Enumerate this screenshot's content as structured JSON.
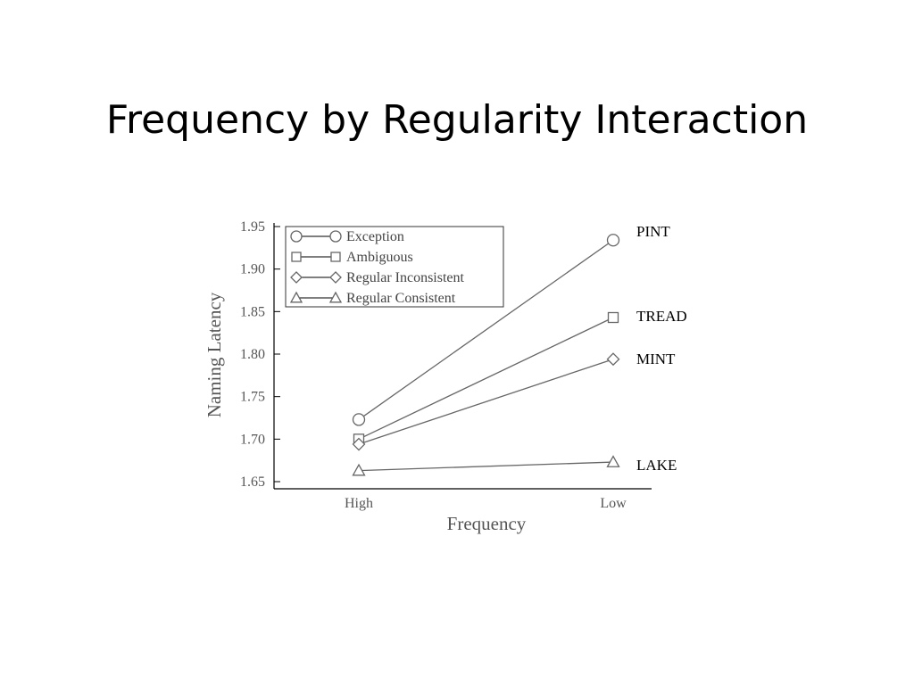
{
  "slide": {
    "title": "Frequency by Regularity Interaction"
  },
  "chart_data": {
    "type": "line",
    "title": "",
    "xlabel": "Frequency",
    "ylabel": "Naming Latency",
    "categories": [
      "High",
      "Low"
    ],
    "ylim": [
      1.65,
      1.95
    ],
    "yticks": [
      "1.95",
      "1.90",
      "1.85",
      "1.80",
      "1.75",
      "1.70",
      "1.65"
    ],
    "legend_position": "top-left",
    "grid": false,
    "series": [
      {
        "name": "Exception",
        "marker": "circle",
        "values": [
          1.723,
          1.934
        ],
        "end_label": "PINT"
      },
      {
        "name": "Ambiguous",
        "marker": "square",
        "values": [
          1.7,
          1.843
        ],
        "end_label": "TREAD"
      },
      {
        "name": "Regular Inconsistent",
        "marker": "diamond",
        "values": [
          1.694,
          1.794
        ],
        "end_label": "MINT"
      },
      {
        "name": "Regular Consistent",
        "marker": "triangle",
        "values": [
          1.663,
          1.673
        ],
        "end_label": "LAKE"
      }
    ],
    "colors": {
      "line": "#666666",
      "axis": "#000000",
      "text": "#555555"
    }
  }
}
